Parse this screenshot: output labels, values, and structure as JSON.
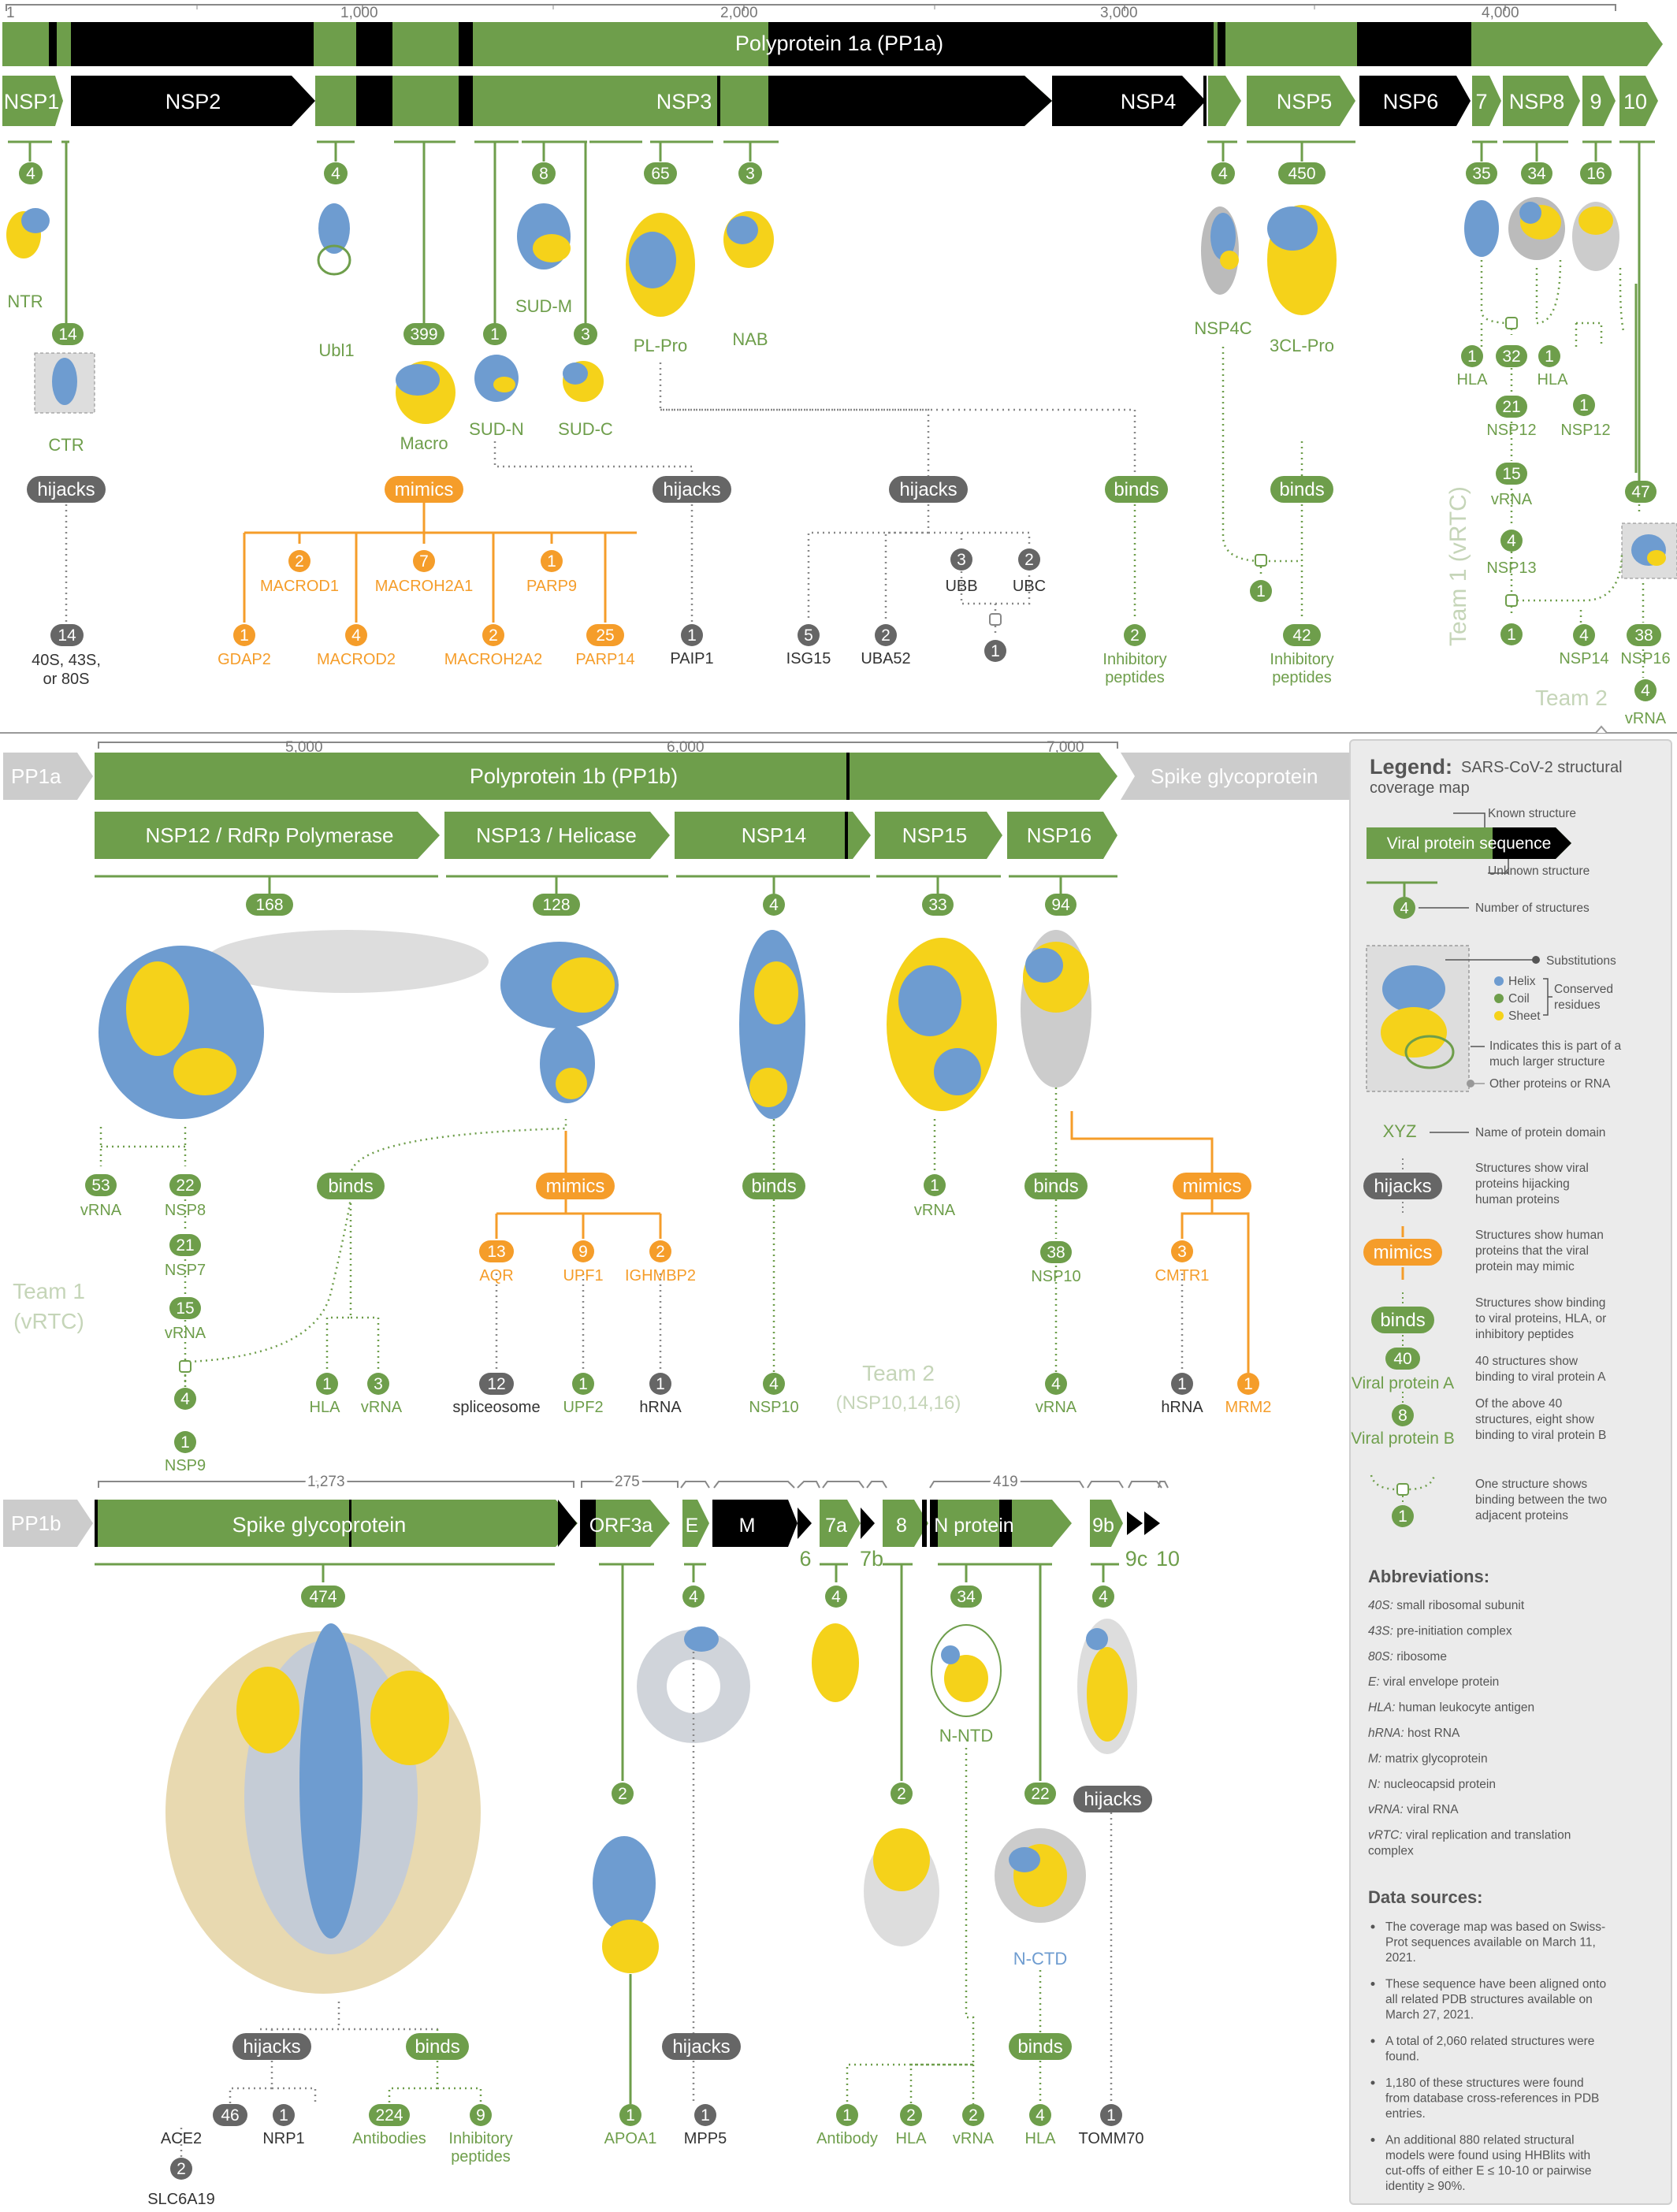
{
  "axis1": {
    "ticks": [
      "1",
      "1,000",
      "2,000",
      "3,000",
      "4,000"
    ]
  },
  "axis2": {
    "ticks": [
      "5,000",
      "6,000",
      "7,000"
    ]
  },
  "axis3": {
    "ticks": [
      "1,273",
      "275",
      "419"
    ]
  },
  "poly1a": "Polyprotein 1a (PP1a)",
  "poly1b": "Polyprotein 1b (PP1b)",
  "pp1a": "PP1a",
  "pp1b": "PP1b",
  "spikeGrey": "Spike glycoprotein",
  "nsp": {
    "n1": "NSP1",
    "n2": "NSP2",
    "n3": "NSP3",
    "n4": "NSP4",
    "n5": "NSP5",
    "n6": "NSP6",
    "n7": "7",
    "n8": "NSP8",
    "n9": "9",
    "n10": "10",
    "n12": "NSP12 / RdRp Polymerase",
    "n13": "NSP13 / Helicase",
    "n14": "NSP14",
    "n15": "NSP15",
    "n16": "NSP16"
  },
  "row3": {
    "spike": "Spike glycoprotein",
    "orf3a": "ORF3a",
    "e": "E",
    "m": "M",
    "o7a": "7a",
    "o8": "8",
    "n": "N protein",
    "o9b": "9b",
    "o6": "6",
    "o7b": "7b",
    "o9c": "9c",
    "o10": "10"
  },
  "lbl": {
    "ntr": "NTR",
    "ctr": "CTR",
    "ubl1": "Ubl1",
    "macro": "Macro",
    "sudn": "SUD-N",
    "sudm": "SUD-M",
    "sudc": "SUD-C",
    "plpro": "PL-Pro",
    "nab": "NAB",
    "nsp4c": "NSP4C",
    "clpro": "3CL-Pro",
    "ribo": [
      "40S, 43S,",
      "or 80S"
    ],
    "macrod1": "MACROD1",
    "macroh2a1": "MACROH2A1",
    "parp9": "PARP9",
    "gdap2": "GDAP2",
    "macrod2": "MACROD2",
    "macroh2a2": "MACROH2A2",
    "parp14": "PARP14",
    "paip1": "PAIP1",
    "isg15": "ISG15",
    "uba52": "UBA52",
    "ubb": "UBB",
    "ubc": "UBC",
    "inhib": [
      "Inhibitory",
      "peptides"
    ],
    "hla": "HLA",
    "nsp12": "NSP12",
    "vrna": "vRNA",
    "nsp13": "NSP13",
    "nsp14": "NSP14",
    "nsp16": "NSP16",
    "team1": "Team 1 (vRTC)",
    "team2": "Team 2",
    "nsp8": "NSP8",
    "nsp7": "NSP7",
    "nsp9": "NSP9",
    "aqr": "AQR",
    "upf1": "UPF1",
    "ighmbp2": "IGHMBP2",
    "splice": "spliceosome",
    "upf2": "UPF2",
    "hrna": "hRNA",
    "nsp10": "NSP10",
    "team1b": [
      "Team 1",
      "(vRTC)"
    ],
    "team2b": [
      "Team 2",
      "(NSP10,14,16)"
    ],
    "cmtr1": "CMTR1",
    "mrm2": "MRM2",
    "ace2": "ACE2",
    "nrp1": "NRP1",
    "slc6a19": "SLC6A19",
    "antibodies": "Antibodies",
    "apoa1": "APOA1",
    "mpp5": "MPP5",
    "antibody": "Antibody",
    "tomm70": "TOMM70",
    "nntd": "N-NTD",
    "nctd": "N-CTD"
  },
  "pill": {
    "hijacks": "hijacks",
    "mimics": "mimics",
    "binds": "binds"
  },
  "counts": {
    "nsp1": "4",
    "ctr": "14",
    "ubl1": "4",
    "macro": "399",
    "sudn": "1",
    "sudm": "8",
    "sudc": "3",
    "plpro": "65",
    "nab": "3",
    "nsp4": "4",
    "nsp5": "450",
    "nsp7": "35",
    "nsp8": "34",
    "nsp9": "16",
    "nsp10": "47",
    "ribo": "14",
    "macrod1": "2",
    "macroh2a1": "7",
    "parp9": "1",
    "gdap2": "1",
    "macrod2": "4",
    "macroh2a2": "2",
    "parp14": "25",
    "paip1": "1",
    "isg15": "5",
    "uba52": "2",
    "ubb": "3",
    "ubc": "2",
    "ubjoin": "1",
    "inhib1": "2",
    "clbind": "1",
    "inhib2": "42",
    "hla1": "1",
    "c32": "32",
    "hla2": "1",
    "n12a": "1",
    "c21": "21",
    "c15": "15",
    "c4": "4",
    "c1": "1",
    "nsp14": "4",
    "c38": "38",
    "vr4": "4",
    "rdrp": "168",
    "helic": "128",
    "nsp14b": "4",
    "nsp15": "33",
    "nsp16": "94",
    "vr53": "53",
    "n8_22": "22",
    "n7_21": "21",
    "vr15": "15",
    "n9_4": "4",
    "n9_1": "1",
    "hla_b1": "1",
    "vr_b3": "3",
    "aqr": "13",
    "upf1": "9",
    "ighmbp2": "2",
    "splice": "12",
    "upf2": "1",
    "hrna1": "1",
    "n10": "4",
    "vr1": "1",
    "n10_38": "38",
    "vr_n16": "4",
    "cmtr1": "3",
    "hrna2": "1",
    "mrm2": "1",
    "spike": "474",
    "ace2": "46",
    "nrp1": "1",
    "slc": "2",
    "antib": "224",
    "inhib3": "9",
    "orf3a": "2",
    "e": "4",
    "apoa1": "1",
    "mpp5": "1",
    "o7a": "4",
    "o8": "2",
    "n": "34",
    "nctd": "22",
    "o9b": "4",
    "antibody": "1",
    "hla_n": "2",
    "vr_n": "2",
    "hla_c": "4",
    "tomm70": "1"
  },
  "legend": {
    "title": "Legend:",
    "subtitle": [
      "SARS-CoV-2 structural",
      "coverage map"
    ],
    "known": "Known structure",
    "seq": "Viral protein sequence",
    "unknown": "Unknown structure",
    "num": "Number of structures",
    "subs": "Substitutions",
    "helix": "Helix",
    "coil": "Coil",
    "sheet": "Sheet",
    "conserved": [
      "Conserved",
      "residues"
    ],
    "larger": [
      "Indicates this is part of a",
      "much larger structure"
    ],
    "other": "Other proteins or RNA",
    "xyz": "XYZ",
    "domain": "Name of protein domain",
    "hij_desc": [
      "Structures show viral",
      "proteins hijacking",
      "human proteins"
    ],
    "mim_desc": [
      "Structures show human",
      "proteins that the viral",
      "protein may mimic"
    ],
    "bind_desc": [
      "Structures show binding",
      "to viral proteins, HLA, or",
      "inhibitory peptides"
    ],
    "c40": "40",
    "c8": "8",
    "vpa": "Viral protein A",
    "vpb": "Viral protein B",
    "d40": [
      "40 structures show",
      "binding to viral protein A"
    ],
    "d8": [
      "Of the above 40",
      "structures, eight show",
      "binding to viral protein B"
    ],
    "c1": "1",
    "d1": [
      "One structure shows",
      "binding between the two",
      "adjacent proteins"
    ]
  },
  "abbr_title": "Abbreviations:",
  "abbr": [
    [
      "40S:",
      "small ribosomal subunit"
    ],
    [
      "43S:",
      "pre-initiation complex"
    ],
    [
      "80S:",
      "ribosome"
    ],
    [
      "E:",
      "viral envelope protein"
    ],
    [
      "HLA:",
      "human leukocyte antigen"
    ],
    [
      "hRNA:",
      "host RNA"
    ],
    [
      "M:",
      "matrix glycoprotein"
    ],
    [
      "N:",
      "nucleocapsid protein"
    ],
    [
      "vRNA:",
      "viral RNA"
    ],
    [
      "vRTC:",
      "viral replication and translation"
    ]
  ],
  "abbr_cont": "complex",
  "ds_title": "Data sources:",
  "ds": [
    [
      "The coverage map was based on Swiss-",
      "Prot sequences available on March 11,",
      "2021."
    ],
    [
      "These sequence have been aligned onto",
      "all related PDB structures available on",
      "March 27, 2021."
    ],
    [
      "A total of 2,060 related structures were",
      "found."
    ],
    [
      "1,180 of these structures were found",
      "from database cross-references in PDB",
      "entries."
    ],
    [
      "An additional 880 related structural",
      "models were found using HHBlits with",
      "cut-offs of either E ≤ 10-10 or pairwise",
      "identity ≥ 90%."
    ]
  ],
  "colors": {
    "green": "#6e9e4b",
    "black": "#000000",
    "orange": "#f59d2a",
    "grey": "#666666",
    "helix": "#6e9cd0",
    "sheet": "#f5d21a"
  }
}
